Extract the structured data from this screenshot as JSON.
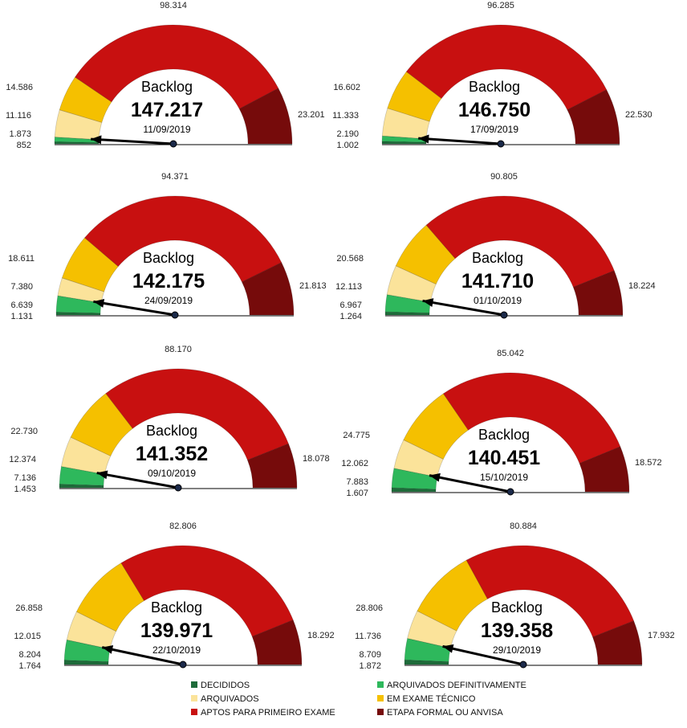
{
  "chart_data": [
    {
      "type": "gauge",
      "label": "Backlog",
      "value": "147.217",
      "date": "11/09/2019",
      "segments": [
        852,
        1873,
        11116,
        14586,
        98314,
        23201
      ],
      "labels": [
        "852",
        "1.873",
        "11.116",
        "14.586",
        "98.314",
        "23.201"
      ]
    },
    {
      "type": "gauge",
      "label": "Backlog",
      "value": "146.750",
      "date": "17/09/2019",
      "segments": [
        1002,
        2190,
        11333,
        16602,
        96285,
        22530
      ],
      "labels": [
        "1.002",
        "2.190",
        "11.333",
        "16.602",
        "96.285",
        "22.530"
      ]
    },
    {
      "type": "gauge",
      "label": "Backlog",
      "value": "142.175",
      "date": "24/09/2019",
      "segments": [
        1131,
        6639,
        7380,
        18611,
        94371,
        21813
      ],
      "labels": [
        "1.131",
        "6.639",
        "7.380",
        "18.611",
        "94.371",
        "21.813"
      ]
    },
    {
      "type": "gauge",
      "label": "Backlog",
      "value": "141.710",
      "date": "01/10/2019",
      "segments": [
        1264,
        6967,
        12113,
        20568,
        90805,
        18224
      ],
      "labels": [
        "1.264",
        "6.967",
        "12.113",
        "20.568",
        "90.805",
        "18.224"
      ]
    },
    {
      "type": "gauge",
      "label": "Backlog",
      "value": "141.352",
      "date": "09/10/2019",
      "segments": [
        1453,
        7136,
        12374,
        22730,
        88170,
        18078
      ],
      "labels": [
        "1.453",
        "7.136",
        "12.374",
        "22.730",
        "88.170",
        "18.078"
      ]
    },
    {
      "type": "gauge",
      "label": "Backlog",
      "value": "140.451",
      "date": "15/10/2019",
      "segments": [
        1607,
        7883,
        12062,
        24775,
        85042,
        18572
      ],
      "labels": [
        "1.607",
        "7.883",
        "12.062",
        "24.775",
        "85.042",
        "18.572"
      ]
    },
    {
      "type": "gauge",
      "label": "Backlog",
      "value": "139.971",
      "date": "22/10/2019",
      "segments": [
        1764,
        8204,
        12015,
        26858,
        82806,
        18292
      ],
      "labels": [
        "1.764",
        "8.204",
        "12.015",
        "26.858",
        "82.806",
        "18.292"
      ]
    },
    {
      "type": "gauge",
      "label": "Backlog",
      "value": "139.358",
      "date": "29/10/2019",
      "segments": [
        1872,
        8709,
        11736,
        28806,
        80884,
        17932
      ],
      "labels": [
        "1.872",
        "8.709",
        "11.736",
        "28.806",
        "80.884",
        "17.932"
      ]
    }
  ],
  "pointer_segment_index": 1,
  "categories": [
    {
      "name": "DECIDIDOS",
      "color": "#1e6b3a"
    },
    {
      "name": "ARQUIVADOS DEFINITIVAMENTE",
      "color": "#2eb85c"
    },
    {
      "name": "ARQUIVADOS",
      "color": "#fbe39a"
    },
    {
      "name": "EM EXAME TÉCNICO",
      "color": "#f5c000"
    },
    {
      "name": "APTOS PARA PRIMEIRO EXAME",
      "color": "#c81010"
    },
    {
      "name": "ETAPA FORMAL OU ANVISA",
      "color": "#760b0b"
    }
  ]
}
